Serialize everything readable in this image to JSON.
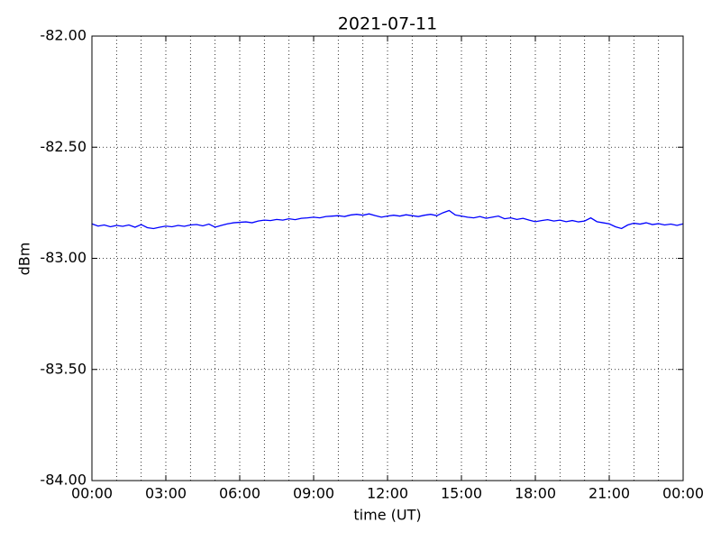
{
  "chart_data": {
    "type": "line",
    "title": "2021-07-11",
    "xlabel": "time (UT)",
    "ylabel": "dBm",
    "x": [
      0,
      0.25,
      0.5,
      0.75,
      1,
      1.25,
      1.5,
      1.75,
      2,
      2.25,
      2.5,
      2.75,
      3,
      3.25,
      3.5,
      3.75,
      4,
      4.25,
      4.5,
      4.75,
      5,
      5.25,
      5.5,
      5.75,
      6,
      6.25,
      6.5,
      6.75,
      7,
      7.25,
      7.5,
      7.75,
      8,
      8.25,
      8.5,
      8.75,
      9,
      9.25,
      9.5,
      9.75,
      10,
      10.25,
      10.5,
      10.75,
      11,
      11.25,
      11.5,
      11.75,
      12,
      12.25,
      12.5,
      12.75,
      13,
      13.25,
      13.5,
      13.75,
      14,
      14.25,
      14.5,
      14.75,
      15,
      15.25,
      15.5,
      15.75,
      16,
      16.25,
      16.5,
      16.75,
      17,
      17.25,
      17.5,
      17.75,
      18,
      18.25,
      18.5,
      18.75,
      19,
      19.25,
      19.5,
      19.75,
      20,
      20.25,
      20.5,
      20.75,
      21,
      21.25,
      21.5,
      21.75,
      22,
      22.25,
      22.5,
      22.75,
      23,
      23.25,
      23.5,
      23.75,
      24
    ],
    "series": [
      {
        "color": "#0000ff",
        "values": [
          -82.845,
          -82.855,
          -82.85,
          -82.858,
          -82.852,
          -82.856,
          -82.85,
          -82.86,
          -82.848,
          -82.862,
          -82.866,
          -82.86,
          -82.855,
          -82.858,
          -82.852,
          -82.856,
          -82.85,
          -82.848,
          -82.854,
          -82.846,
          -82.86,
          -82.852,
          -82.845,
          -82.84,
          -82.838,
          -82.836,
          -82.84,
          -82.832,
          -82.828,
          -82.83,
          -82.825,
          -82.828,
          -82.822,
          -82.826,
          -82.82,
          -82.818,
          -82.815,
          -82.818,
          -82.812,
          -82.81,
          -82.808,
          -82.812,
          -82.805,
          -82.802,
          -82.806,
          -82.8,
          -82.808,
          -82.815,
          -82.81,
          -82.806,
          -82.81,
          -82.804,
          -82.808,
          -82.812,
          -82.806,
          -82.802,
          -82.808,
          -82.795,
          -82.785,
          -82.805,
          -82.81,
          -82.815,
          -82.818,
          -82.812,
          -82.82,
          -82.815,
          -82.81,
          -82.822,
          -82.818,
          -82.825,
          -82.82,
          -82.828,
          -82.835,
          -82.83,
          -82.826,
          -82.832,
          -82.828,
          -82.835,
          -82.83,
          -82.836,
          -82.832,
          -82.818,
          -82.835,
          -82.84,
          -82.845,
          -82.858,
          -82.866,
          -82.85,
          -82.842,
          -82.846,
          -82.84,
          -82.848,
          -82.844,
          -82.85,
          -82.846,
          -82.852,
          -82.845
        ]
      }
    ],
    "xlim": [
      0,
      24
    ],
    "xticks": [
      {
        "value": 0,
        "label": "00:00"
      },
      {
        "value": 3,
        "label": "03:00"
      },
      {
        "value": 6,
        "label": "06:00"
      },
      {
        "value": 9,
        "label": "09:00"
      },
      {
        "value": 12,
        "label": "12:00"
      },
      {
        "value": 15,
        "label": "15:00"
      },
      {
        "value": 18,
        "label": "18:00"
      },
      {
        "value": 21,
        "label": "21:00"
      },
      {
        "value": 24,
        "label": "00:00"
      }
    ],
    "xminorticks": [
      1,
      2,
      4,
      5,
      7,
      8,
      10,
      11,
      13,
      14,
      16,
      17,
      19,
      20,
      22,
      23
    ],
    "ylim": [
      -84,
      -82
    ],
    "yticks": [
      {
        "value": -84,
        "label": "-84.00"
      },
      {
        "value": -83.5,
        "label": "-83.50"
      },
      {
        "value": -83,
        "label": "-83.00"
      },
      {
        "value": -82.5,
        "label": "-82.50"
      },
      {
        "value": -82,
        "label": "-82.00"
      }
    ],
    "grid": true
  }
}
